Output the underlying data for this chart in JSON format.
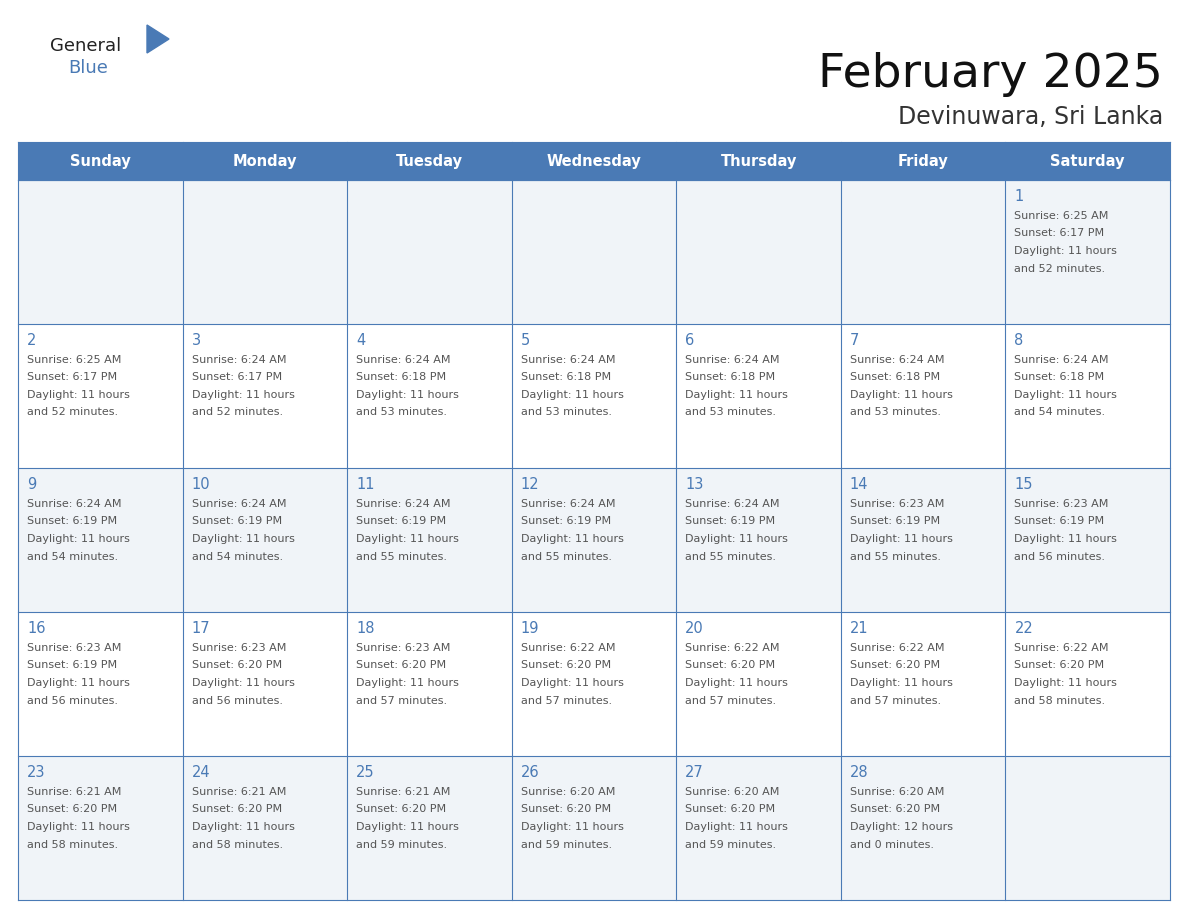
{
  "title": "February 2025",
  "subtitle": "Devinuwara, Sri Lanka",
  "days_of_week": [
    "Sunday",
    "Monday",
    "Tuesday",
    "Wednesday",
    "Thursday",
    "Friday",
    "Saturday"
  ],
  "header_bg": "#4a7ab5",
  "header_text": "#FFFFFF",
  "cell_bg_light": "#f0f4f8",
  "cell_bg_white": "#FFFFFF",
  "border_color": "#4a7ab5",
  "title_color": "#111111",
  "subtitle_color": "#333333",
  "day_number_color": "#4a7ab5",
  "cell_text_color": "#555555",
  "logo_general_color": "#222222",
  "logo_blue_color": "#4a7ab5",
  "logo_triangle_color": "#4a7ab5",
  "calendar_data": [
    [
      null,
      null,
      null,
      null,
      null,
      null,
      {
        "day": 1,
        "sunrise": "6:25 AM",
        "sunset": "6:17 PM",
        "daylight_line1": "11 hours",
        "daylight_line2": "and 52 minutes."
      }
    ],
    [
      {
        "day": 2,
        "sunrise": "6:25 AM",
        "sunset": "6:17 PM",
        "daylight_line1": "11 hours",
        "daylight_line2": "and 52 minutes."
      },
      {
        "day": 3,
        "sunrise": "6:24 AM",
        "sunset": "6:17 PM",
        "daylight_line1": "11 hours",
        "daylight_line2": "and 52 minutes."
      },
      {
        "day": 4,
        "sunrise": "6:24 AM",
        "sunset": "6:18 PM",
        "daylight_line1": "11 hours",
        "daylight_line2": "and 53 minutes."
      },
      {
        "day": 5,
        "sunrise": "6:24 AM",
        "sunset": "6:18 PM",
        "daylight_line1": "11 hours",
        "daylight_line2": "and 53 minutes."
      },
      {
        "day": 6,
        "sunrise": "6:24 AM",
        "sunset": "6:18 PM",
        "daylight_line1": "11 hours",
        "daylight_line2": "and 53 minutes."
      },
      {
        "day": 7,
        "sunrise": "6:24 AM",
        "sunset": "6:18 PM",
        "daylight_line1": "11 hours",
        "daylight_line2": "and 53 minutes."
      },
      {
        "day": 8,
        "sunrise": "6:24 AM",
        "sunset": "6:18 PM",
        "daylight_line1": "11 hours",
        "daylight_line2": "and 54 minutes."
      }
    ],
    [
      {
        "day": 9,
        "sunrise": "6:24 AM",
        "sunset": "6:19 PM",
        "daylight_line1": "11 hours",
        "daylight_line2": "and 54 minutes."
      },
      {
        "day": 10,
        "sunrise": "6:24 AM",
        "sunset": "6:19 PM",
        "daylight_line1": "11 hours",
        "daylight_line2": "and 54 minutes."
      },
      {
        "day": 11,
        "sunrise": "6:24 AM",
        "sunset": "6:19 PM",
        "daylight_line1": "11 hours",
        "daylight_line2": "and 55 minutes."
      },
      {
        "day": 12,
        "sunrise": "6:24 AM",
        "sunset": "6:19 PM",
        "daylight_line1": "11 hours",
        "daylight_line2": "and 55 minutes."
      },
      {
        "day": 13,
        "sunrise": "6:24 AM",
        "sunset": "6:19 PM",
        "daylight_line1": "11 hours",
        "daylight_line2": "and 55 minutes."
      },
      {
        "day": 14,
        "sunrise": "6:23 AM",
        "sunset": "6:19 PM",
        "daylight_line1": "11 hours",
        "daylight_line2": "and 55 minutes."
      },
      {
        "day": 15,
        "sunrise": "6:23 AM",
        "sunset": "6:19 PM",
        "daylight_line1": "11 hours",
        "daylight_line2": "and 56 minutes."
      }
    ],
    [
      {
        "day": 16,
        "sunrise": "6:23 AM",
        "sunset": "6:19 PM",
        "daylight_line1": "11 hours",
        "daylight_line2": "and 56 minutes."
      },
      {
        "day": 17,
        "sunrise": "6:23 AM",
        "sunset": "6:20 PM",
        "daylight_line1": "11 hours",
        "daylight_line2": "and 56 minutes."
      },
      {
        "day": 18,
        "sunrise": "6:23 AM",
        "sunset": "6:20 PM",
        "daylight_line1": "11 hours",
        "daylight_line2": "and 57 minutes."
      },
      {
        "day": 19,
        "sunrise": "6:22 AM",
        "sunset": "6:20 PM",
        "daylight_line1": "11 hours",
        "daylight_line2": "and 57 minutes."
      },
      {
        "day": 20,
        "sunrise": "6:22 AM",
        "sunset": "6:20 PM",
        "daylight_line1": "11 hours",
        "daylight_line2": "and 57 minutes."
      },
      {
        "day": 21,
        "sunrise": "6:22 AM",
        "sunset": "6:20 PM",
        "daylight_line1": "11 hours",
        "daylight_line2": "and 57 minutes."
      },
      {
        "day": 22,
        "sunrise": "6:22 AM",
        "sunset": "6:20 PM",
        "daylight_line1": "11 hours",
        "daylight_line2": "and 58 minutes."
      }
    ],
    [
      {
        "day": 23,
        "sunrise": "6:21 AM",
        "sunset": "6:20 PM",
        "daylight_line1": "11 hours",
        "daylight_line2": "and 58 minutes."
      },
      {
        "day": 24,
        "sunrise": "6:21 AM",
        "sunset": "6:20 PM",
        "daylight_line1": "11 hours",
        "daylight_line2": "and 58 minutes."
      },
      {
        "day": 25,
        "sunrise": "6:21 AM",
        "sunset": "6:20 PM",
        "daylight_line1": "11 hours",
        "daylight_line2": "and 59 minutes."
      },
      {
        "day": 26,
        "sunrise": "6:20 AM",
        "sunset": "6:20 PM",
        "daylight_line1": "11 hours",
        "daylight_line2": "and 59 minutes."
      },
      {
        "day": 27,
        "sunrise": "6:20 AM",
        "sunset": "6:20 PM",
        "daylight_line1": "11 hours",
        "daylight_line2": "and 59 minutes."
      },
      {
        "day": 28,
        "sunrise": "6:20 AM",
        "sunset": "6:20 PM",
        "daylight_line1": "12 hours",
        "daylight_line2": "and 0 minutes."
      },
      null
    ]
  ]
}
